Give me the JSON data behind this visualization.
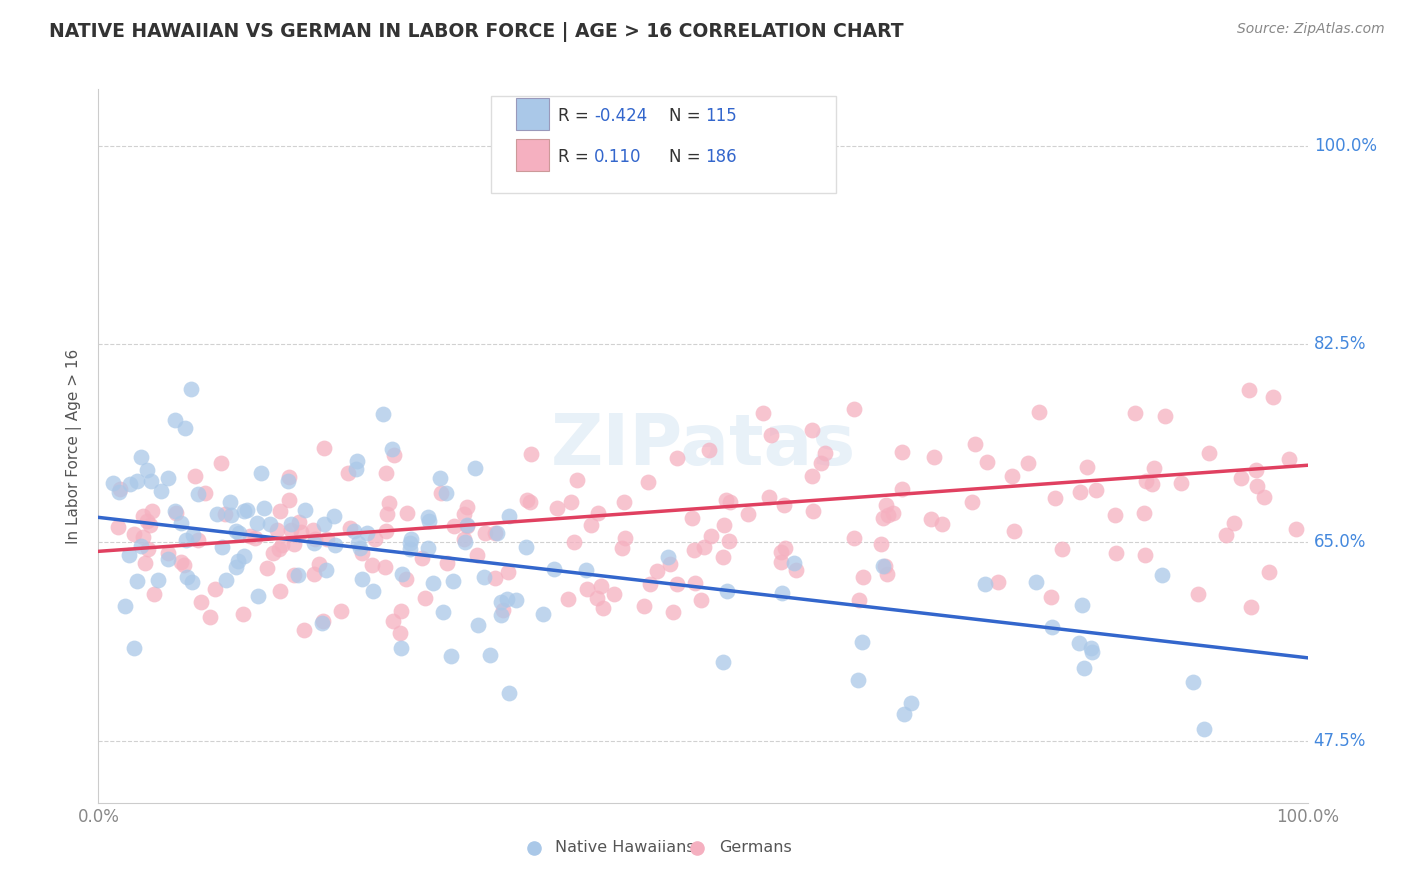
{
  "title": "NATIVE HAWAIIAN VS GERMAN IN LABOR FORCE | AGE > 16 CORRELATION CHART",
  "source_text": "Source: ZipAtlas.com",
  "ylabel": "In Labor Force | Age > 16",
  "xlim": [
    0.0,
    1.0
  ],
  "ylim": [
    0.42,
    1.05
  ],
  "yticks": [
    0.475,
    0.65,
    0.825,
    1.0
  ],
  "ytick_labels": [
    "47.5%",
    "65.0%",
    "82.5%",
    "100.0%"
  ],
  "xtick_labels": [
    "0.0%",
    "100.0%"
  ],
  "xticks": [
    0.0,
    1.0
  ],
  "blue_R": -0.424,
  "blue_N": 115,
  "pink_R": 0.11,
  "pink_N": 186,
  "blue_color": "#aac8e8",
  "pink_color": "#f5b0c0",
  "blue_line_color": "#3366cc",
  "pink_line_color": "#e04060",
  "background_color": "#ffffff",
  "grid_color": "#cccccc",
  "title_color": "#333333",
  "label_color": "#4488dd",
  "watermark_text": "ZIPatas",
  "legend_blue_label": "Native Hawaiians",
  "legend_pink_label": "Germans",
  "legend_R_color": "#222222",
  "legend_val_color": "#3366cc",
  "legend_N_color": "#3366cc"
}
